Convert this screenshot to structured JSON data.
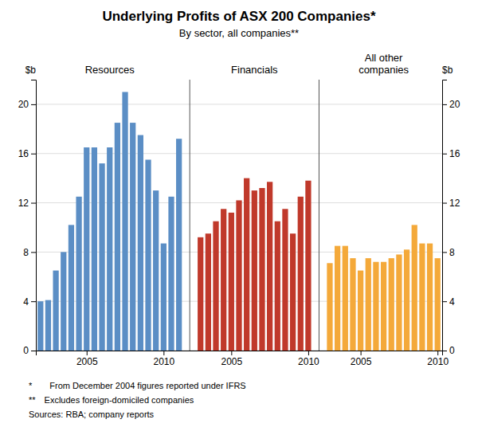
{
  "chart_data": {
    "type": "bar",
    "title": "Underlying Profits of ASX 200 Companies*",
    "subtitle": "By sector, all companies**",
    "ylabel": "$b",
    "y2label": "$b",
    "ylim": [
      0,
      22
    ],
    "yticks": [
      0,
      4,
      8,
      12,
      16,
      20
    ],
    "y2lim": [
      0,
      22
    ],
    "y2ticks": [
      0,
      4,
      8,
      12,
      16,
      20
    ],
    "grid": true,
    "annotations": [
      "*  From December 2004 figures reported under IFRS",
      "** Excludes foreign-domiciled companies",
      "Sources: RBA; company reports"
    ],
    "series": [
      {
        "name": "Resources",
        "color": "#5B8EC5",
        "categories": [
          null,
          null,
          null,
          null,
          null,
          null,
          "2005",
          null,
          null,
          null,
          null,
          null,
          null,
          null,
          null,
          null,
          "2010",
          null,
          null
        ],
        "values": [
          4.0,
          4.1,
          6.5,
          8.0,
          10.2,
          12.5,
          16.5,
          16.5,
          15.2,
          16.5,
          18.5,
          21.0,
          18.5,
          17.5,
          15.5,
          13.0,
          8.7,
          12.5,
          17.2
        ]
      },
      {
        "name": "Financials",
        "color": "#C0392B",
        "categories": [
          null,
          null,
          null,
          null,
          "2005",
          null,
          null,
          null,
          null,
          null,
          null,
          null,
          null,
          null,
          "2010"
        ],
        "values": [
          9.2,
          9.5,
          10.5,
          11.5,
          11.2,
          12.2,
          14.0,
          13.0,
          13.2,
          13.7,
          10.5,
          11.5,
          9.5,
          12.5,
          13.8
        ]
      },
      {
        "name": "All other\ncompanies",
        "color": "#F4A93A",
        "categories": [
          null,
          null,
          null,
          null,
          "2005",
          null,
          null,
          null,
          null,
          null,
          null,
          null,
          null,
          null,
          "2010"
        ],
        "values": [
          7.1,
          8.5,
          8.5,
          7.5,
          6.5,
          7.5,
          7.2,
          7.2,
          7.5,
          7.8,
          8.2,
          10.2,
          8.7,
          8.7,
          7.5
        ]
      }
    ]
  }
}
